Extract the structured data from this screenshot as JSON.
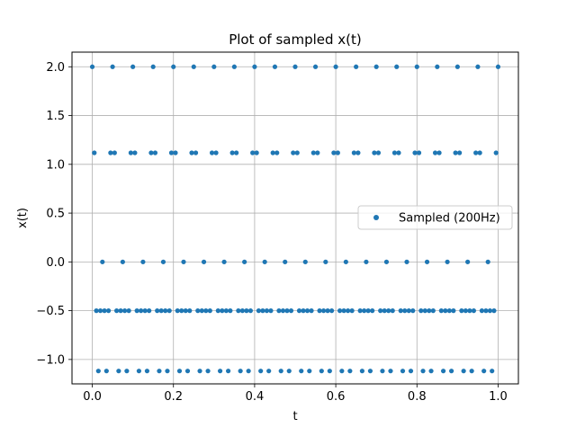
{
  "chart_data": {
    "type": "scatter",
    "title": "Plot of sampled x(t)",
    "xlabel": "t",
    "ylabel": "x(t)",
    "xlim": [
      -0.05,
      1.05
    ],
    "ylim": [
      -1.25,
      2.15
    ],
    "xticks": [
      0.0,
      0.2,
      0.4,
      0.6,
      0.8,
      1.0
    ],
    "xtick_labels": [
      "0.0",
      "0.2",
      "0.4",
      "0.6",
      "0.8",
      "1.0"
    ],
    "yticks": [
      -1.0,
      -0.5,
      0.0,
      0.5,
      1.0,
      1.5,
      2.0
    ],
    "ytick_labels": [
      "−1.0",
      "−0.5",
      "0.0",
      "0.5",
      "1.0",
      "1.5",
      "2.0"
    ],
    "grid": true,
    "legend_position": "center-right",
    "marker_color": "#1f77b4",
    "series": [
      {
        "name": "Sampled (200Hz)",
        "sample_rate_hz": 200,
        "t_start": 0.0,
        "t_end": 1.0,
        "period_samples": 40,
        "cycle_values": [
          2.0,
          1.118,
          -0.5,
          -1.118,
          -0.5,
          0.0,
          -0.5,
          -1.118,
          -0.5,
          1.118,
          2.0,
          1.118,
          -0.5,
          -1.118,
          -0.5,
          0.0,
          -0.5,
          -1.118,
          -0.5,
          1.118,
          2.0,
          1.118,
          -0.5,
          -1.118,
          -0.5,
          0.0,
          -0.5,
          -1.118,
          -0.5,
          1.118,
          2.0,
          1.118,
          -0.5,
          -1.118,
          -0.5,
          0.0,
          -0.5,
          -1.118,
          -0.5,
          1.118
        ]
      }
    ]
  }
}
